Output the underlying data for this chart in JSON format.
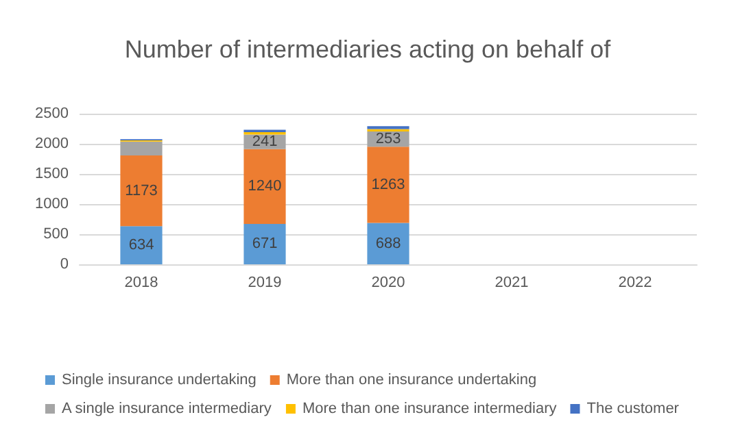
{
  "chart_data": {
    "type": "bar",
    "title": "Number of intermediaries acting on behalf of",
    "categories": [
      "2018",
      "2019",
      "2020",
      "2021",
      "2022"
    ],
    "stacked": true,
    "ylim": [
      0,
      2500
    ],
    "yticks": [
      0,
      500,
      1000,
      1500,
      2000,
      2500
    ],
    "grid": "y",
    "legend": "bottom",
    "series": [
      {
        "name": "Single insurance undertaking",
        "color": "#5b9bd5",
        "values": [
          634,
          671,
          688,
          null,
          null
        ],
        "value_labels": [
          "634",
          "671",
          "688",
          null,
          null
        ]
      },
      {
        "name": "More than one insurance undertaking",
        "color": "#ed7d31",
        "values": [
          1173,
          1240,
          1263,
          null,
          null
        ],
        "value_labels": [
          "1173",
          "1240",
          "1263",
          null,
          null
        ]
      },
      {
        "name": "A single insurance intermediary",
        "color": "#a5a5a5",
        "values": [
          230,
          241,
          253,
          null,
          null
        ],
        "value_labels": [
          null,
          "241",
          "253",
          null,
          null
        ]
      },
      {
        "name": "More than one insurance intermediary",
        "color": "#ffc000",
        "values": [
          20,
          40,
          40,
          null,
          null
        ],
        "value_labels": [
          null,
          null,
          null,
          null,
          null
        ]
      },
      {
        "name": "The customer",
        "color": "#4472c4",
        "values": [
          20,
          40,
          50,
          null,
          null
        ],
        "value_labels": [
          null,
          null,
          null,
          null,
          null
        ]
      }
    ]
  }
}
